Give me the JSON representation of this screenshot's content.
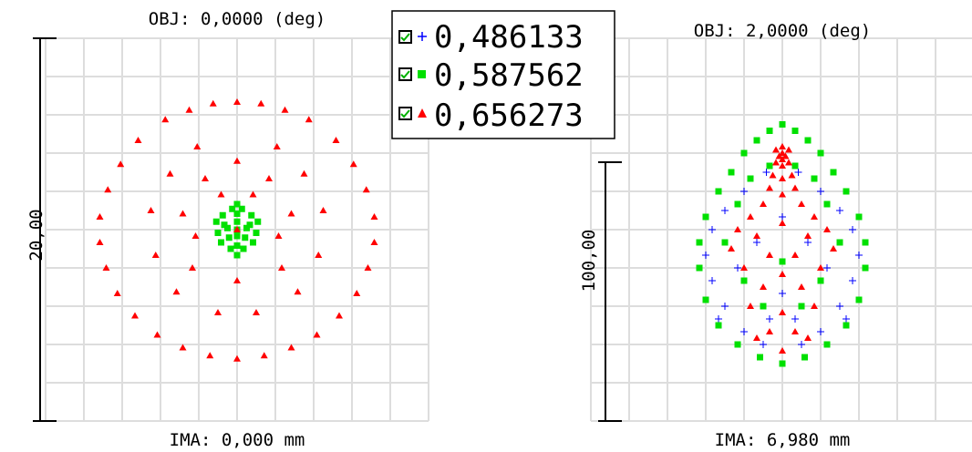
{
  "chart_data": [
    {
      "type": "scatter",
      "title": "OBJ: 0,0000 (deg)",
      "xlabel": "IMA: 0,000 mm",
      "ylabel": "20,00",
      "scale_bar_value": 20.0,
      "xlim": [
        -12,
        12
      ],
      "ylim": [
        -12,
        12
      ],
      "grid": true,
      "series": [
        {
          "name": "0,486133",
          "marker": "plus",
          "color": "#0000ff",
          "points": []
        },
        {
          "name": "0,587562",
          "marker": "square",
          "color": "#00e000",
          "points": [
            [
              0,
              0
            ],
            [
              -0.8,
              0.3
            ],
            [
              0.8,
              0.3
            ],
            [
              -0.5,
              -0.5
            ],
            [
              0.5,
              -0.5
            ],
            [
              0,
              1
            ],
            [
              0,
              -1
            ],
            [
              -1.2,
              -0.2
            ],
            [
              1.2,
              -0.2
            ],
            [
              -0.9,
              0.9
            ],
            [
              0.9,
              0.9
            ],
            [
              -0.3,
              1.3
            ],
            [
              0.3,
              1.3
            ],
            [
              -0.4,
              -1.2
            ],
            [
              0.4,
              -1.2
            ],
            [
              -1.3,
              0.5
            ],
            [
              1.3,
              0.5
            ],
            [
              0,
              0.5
            ],
            [
              0,
              -0.4
            ],
            [
              -0.6,
              0.1
            ],
            [
              0.6,
              0.1
            ],
            [
              -1,
              -0.8
            ],
            [
              1,
              -0.8
            ],
            [
              0,
              -1.6
            ],
            [
              0,
              1.6
            ]
          ]
        },
        {
          "name": "0,656273",
          "marker": "triangle",
          "color": "#ff0000",
          "points": [
            [
              -3,
              7.5
            ],
            [
              -1.5,
              7.9
            ],
            [
              0,
              8.0
            ],
            [
              1.5,
              7.9
            ],
            [
              3,
              7.5
            ],
            [
              -4.5,
              6.9
            ],
            [
              4.5,
              6.9
            ],
            [
              -6.2,
              5.6
            ],
            [
              6.2,
              5.6
            ],
            [
              -7.3,
              4.1
            ],
            [
              7.3,
              4.1
            ],
            [
              -8.1,
              2.5
            ],
            [
              8.1,
              2.5
            ],
            [
              -8.6,
              0.8
            ],
            [
              8.6,
              0.8
            ],
            [
              -8.6,
              -0.8
            ],
            [
              8.6,
              -0.8
            ],
            [
              -8.2,
              -2.4
            ],
            [
              8.2,
              -2.4
            ],
            [
              -7.5,
              -4
            ],
            [
              7.5,
              -4
            ],
            [
              -6.4,
              -5.4
            ],
            [
              6.4,
              -5.4
            ],
            [
              -5,
              -6.6
            ],
            [
              5,
              -6.6
            ],
            [
              -3.4,
              -7.4
            ],
            [
              3.4,
              -7.4
            ],
            [
              -1.7,
              -7.9
            ],
            [
              0,
              -8.1
            ],
            [
              1.7,
              -7.9
            ],
            [
              -2.5,
              5.2
            ],
            [
              2.5,
              5.2
            ],
            [
              -4.2,
              3.5
            ],
            [
              4.2,
              3.5
            ],
            [
              -5.4,
              1.2
            ],
            [
              5.4,
              1.2
            ],
            [
              -5.1,
              -1.6
            ],
            [
              5.1,
              -1.6
            ],
            [
              -3.8,
              -3.9
            ],
            [
              3.8,
              -3.9
            ],
            [
              -1.2,
              -5.2
            ],
            [
              1.2,
              -5.2
            ],
            [
              0,
              -3.2
            ],
            [
              -2.8,
              -2.4
            ],
            [
              2.8,
              -2.4
            ],
            [
              -3.4,
              1.0
            ],
            [
              3.4,
              1.0
            ],
            [
              0,
              4.3
            ],
            [
              -2.0,
              3.2
            ],
            [
              2.0,
              3.2
            ],
            [
              -1.0,
              2.2
            ],
            [
              1.0,
              2.2
            ],
            [
              -2.6,
              -0.4
            ],
            [
              2.6,
              -0.4
            ],
            [
              0,
              0
            ]
          ]
        }
      ],
      "legend": {
        "entries": [
          "0,486133",
          "0,587562",
          "0,656273"
        ],
        "position": "top-right"
      }
    },
    {
      "type": "scatter",
      "title": "OBJ: 2,0000 (deg)",
      "xlabel": "IMA: 6,980 mm",
      "ylabel": "100,00",
      "scale_bar_value": 100.0,
      "xlim": [
        -60,
        60
      ],
      "ylim": [
        -60,
        60
      ],
      "grid": true,
      "series": [
        {
          "name": "0,486133",
          "marker": "plus",
          "color": "#0000ff",
          "points": [
            [
              -5,
              18
            ],
            [
              5,
              18
            ],
            [
              -12,
              12
            ],
            [
              12,
              12
            ],
            [
              -18,
              6
            ],
            [
              18,
              6
            ],
            [
              -22,
              0
            ],
            [
              22,
              0
            ],
            [
              -24,
              -8
            ],
            [
              24,
              -8
            ],
            [
              -22,
              -16
            ],
            [
              22,
              -16
            ],
            [
              -18,
              -24
            ],
            [
              18,
              -24
            ],
            [
              -12,
              -32
            ],
            [
              12,
              -32
            ],
            [
              -6,
              -36
            ],
            [
              6,
              -36
            ],
            [
              0,
              -20
            ],
            [
              -8,
              -4
            ],
            [
              8,
              -4
            ],
            [
              -14,
              -12
            ],
            [
              14,
              -12
            ],
            [
              0,
              4
            ],
            [
              -4,
              -28
            ],
            [
              4,
              -28
            ],
            [
              -20,
              -28
            ],
            [
              20,
              -28
            ]
          ]
        },
        {
          "name": "0,587562",
          "marker": "square",
          "color": "#00e000",
          "points": [
            [
              0,
              33
            ],
            [
              -4,
              31
            ],
            [
              4,
              31
            ],
            [
              -8,
              28
            ],
            [
              8,
              28
            ],
            [
              -12,
              24
            ],
            [
              12,
              24
            ],
            [
              -16,
              18
            ],
            [
              16,
              18
            ],
            [
              -20,
              12
            ],
            [
              20,
              12
            ],
            [
              -24,
              4
            ],
            [
              24,
              4
            ],
            [
              -26,
              -4
            ],
            [
              26,
              -4
            ],
            [
              -26,
              -12
            ],
            [
              26,
              -12
            ],
            [
              -24,
              -22
            ],
            [
              24,
              -22
            ],
            [
              -20,
              -30
            ],
            [
              20,
              -30
            ],
            [
              -14,
              -36
            ],
            [
              14,
              -36
            ],
            [
              -7,
              -40
            ],
            [
              7,
              -40
            ],
            [
              0,
              -42
            ],
            [
              -10,
              16
            ],
            [
              10,
              16
            ],
            [
              -14,
              8
            ],
            [
              14,
              8
            ],
            [
              -18,
              -4
            ],
            [
              18,
              -4
            ],
            [
              -12,
              -16
            ],
            [
              12,
              -16
            ],
            [
              -6,
              -24
            ],
            [
              6,
              -24
            ],
            [
              0,
              -10
            ],
            [
              -4,
              20
            ],
            [
              4,
              20
            ]
          ]
        },
        {
          "name": "0,656273",
          "marker": "triangle",
          "color": "#ff0000",
          "points": [
            [
              0,
              26
            ],
            [
              -2,
              25
            ],
            [
              2,
              25
            ],
            [
              0,
              24
            ],
            [
              -1,
              23
            ],
            [
              1,
              23
            ],
            [
              0,
              22
            ],
            [
              -2,
              21
            ],
            [
              2,
              21
            ],
            [
              0,
              20
            ],
            [
              -3,
              17
            ],
            [
              3,
              17
            ],
            [
              0,
              16
            ],
            [
              -4,
              13
            ],
            [
              4,
              13
            ],
            [
              0,
              11
            ],
            [
              -6,
              8
            ],
            [
              6,
              8
            ],
            [
              -10,
              4
            ],
            [
              10,
              4
            ],
            [
              -14,
              0
            ],
            [
              14,
              0
            ],
            [
              0,
              2
            ],
            [
              -8,
              -2
            ],
            [
              8,
              -2
            ],
            [
              -16,
              -6
            ],
            [
              16,
              -6
            ],
            [
              -4,
              -8
            ],
            [
              4,
              -8
            ],
            [
              -12,
              -12
            ],
            [
              12,
              -12
            ],
            [
              0,
              -14
            ],
            [
              -6,
              -18
            ],
            [
              6,
              -18
            ],
            [
              -10,
              -24
            ],
            [
              10,
              -24
            ],
            [
              0,
              -26
            ],
            [
              -4,
              -32
            ],
            [
              4,
              -32
            ],
            [
              0,
              -38
            ],
            [
              -8,
              -34
            ],
            [
              8,
              -34
            ]
          ]
        }
      ],
      "legend": {
        "entries": [
          "0,486133",
          "0,587562",
          "0,656273"
        ],
        "position": "top-right"
      }
    }
  ]
}
